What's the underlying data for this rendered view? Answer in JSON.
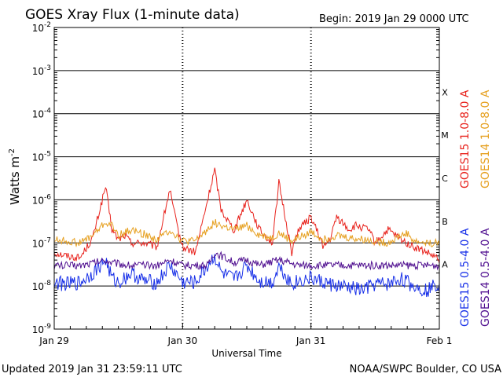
{
  "chart_data": {
    "type": "line",
    "title": "GOES Xray Flux (1-minute data)",
    "begin_label": "Begin:  2019 Jan 29 0000 UTC",
    "xlabel": "Universal Time",
    "ylabel": "Watts m",
    "ylabel_sup": "-2",
    "y_scale": "log",
    "ylim": [
      1e-09,
      0.01
    ],
    "x_ticks": [
      "Jan 29",
      "Jan 30",
      "Jan 31",
      "Feb 1"
    ],
    "y_ticks": [
      {
        "base": "10",
        "exp": "-9"
      },
      {
        "base": "10",
        "exp": "-8"
      },
      {
        "base": "10",
        "exp": "-7"
      },
      {
        "base": "10",
        "exp": "-6"
      },
      {
        "base": "10",
        "exp": "-5"
      },
      {
        "base": "10",
        "exp": "-4"
      },
      {
        "base": "10",
        "exp": "-3"
      },
      {
        "base": "10",
        "exp": "-2"
      }
    ],
    "flare_classes": [
      {
        "label": "A",
        "level": 1e-08
      },
      {
        "label": "B",
        "level": 1e-07
      },
      {
        "label": "C",
        "level": 1e-06
      },
      {
        "label": "M",
        "level": 1e-05
      },
      {
        "label": "X",
        "level": 0.0001
      }
    ],
    "x_units": "days since Jan 29 0000 UTC",
    "series": [
      {
        "name": "GOES15 1.0-8.0 A",
        "color": "#e8221c",
        "x": [
          0,
          0.1,
          0.2,
          0.3,
          0.4,
          0.45,
          0.5,
          0.55,
          0.6,
          0.7,
          0.8,
          0.9,
          0.95,
          1.0,
          1.1,
          1.25,
          1.3,
          1.4,
          1.5,
          1.6,
          1.7,
          1.75,
          1.85,
          1.9,
          2.0,
          2.1,
          2.15,
          2.2,
          2.3,
          2.35,
          2.45,
          2.5,
          2.6,
          2.7,
          2.8,
          2.9,
          3.0
        ],
        "y": [
          6e-08,
          5e-08,
          4.5e-08,
          1.3e-07,
          2e-06,
          2e-07,
          1.2e-07,
          1.5e-07,
          1e-07,
          1e-07,
          8e-08,
          1.7e-06,
          3e-07,
          8e-08,
          6e-08,
          5e-06,
          6e-07,
          2e-07,
          1e-06,
          2e-07,
          1e-07,
          2.5e-06,
          6e-08,
          2e-07,
          4e-07,
          8e-08,
          1.2e-07,
          4e-07,
          2e-07,
          2.5e-07,
          2e-07,
          1e-07,
          2e-07,
          1.2e-07,
          8e-08,
          6e-08,
          4e-08
        ]
      },
      {
        "name": "GOES14 1.0-8.0 A",
        "color": "#e6a020",
        "x": [
          0,
          0.1,
          0.2,
          0.3,
          0.4,
          0.45,
          0.5,
          0.6,
          0.7,
          0.8,
          0.9,
          1.0,
          1.1,
          1.25,
          1.3,
          1.4,
          1.5,
          1.6,
          1.7,
          1.75,
          1.85,
          1.9,
          2.0,
          2.1,
          2.2,
          2.3,
          2.4,
          2.5,
          2.6,
          2.7,
          2.75,
          2.8,
          2.9,
          3.0
        ],
        "y": [
          1.2e-07,
          1.1e-07,
          1e-07,
          1.5e-07,
          3e-07,
          2.5e-07,
          1.5e-07,
          2e-07,
          1.6e-07,
          1.2e-07,
          2e-07,
          1.1e-07,
          1.1e-07,
          3e-07,
          2.5e-07,
          2e-07,
          2.5e-07,
          1.5e-07,
          1.3e-07,
          1.7e-07,
          1.1e-07,
          1.3e-07,
          1.8e-07,
          1.2e-07,
          1.5e-07,
          1.3e-07,
          1.2e-07,
          1.1e-07,
          1e-07,
          1.5e-07,
          1.7e-07,
          1.1e-07,
          1e-07,
          1e-07
        ]
      },
      {
        "name": "GOES15 0.5-4.0 A",
        "color": "#1830e8",
        "x": [
          0,
          0.1,
          0.2,
          0.3,
          0.4,
          0.45,
          0.5,
          0.6,
          0.7,
          0.8,
          0.9,
          1.0,
          1.1,
          1.25,
          1.3,
          1.4,
          1.5,
          1.6,
          1.7,
          1.75,
          1.85,
          1.9,
          2.0,
          2.1,
          2.2,
          2.3,
          2.4,
          2.5,
          2.6,
          2.7,
          2.8,
          2.9,
          3.0
        ],
        "y": [
          1.2e-08,
          1.1e-08,
          1.2e-08,
          2e-08,
          4e-08,
          1.5e-08,
          1.2e-08,
          2e-08,
          1.3e-08,
          1.2e-08,
          3e-08,
          1.2e-08,
          1.2e-08,
          5e-08,
          2e-08,
          1.4e-08,
          3e-08,
          1.3e-08,
          1.2e-08,
          3e-08,
          1.1e-08,
          1.3e-08,
          1.5e-08,
          1.2e-08,
          1e-08,
          9e-09,
          8e-09,
          1.1e-08,
          1.1e-08,
          1.5e-08,
          1e-08,
          8e-09,
          1.2e-08
        ]
      },
      {
        "name": "GOES14 0.5-4.0 A",
        "color": "#501090",
        "x": [
          0,
          0.2,
          0.4,
          0.45,
          0.6,
          0.8,
          0.9,
          1.0,
          1.2,
          1.25,
          1.4,
          1.5,
          1.6,
          1.75,
          1.9,
          2.1,
          2.3,
          2.5,
          2.7,
          2.9,
          3.0
        ],
        "y": [
          3e-08,
          3e-08,
          4e-08,
          3.5e-08,
          3e-08,
          3e-08,
          4e-08,
          3e-08,
          3e-08,
          6e-08,
          3.5e-08,
          4e-08,
          3e-08,
          4e-08,
          3e-08,
          3e-08,
          3e-08,
          3e-08,
          3e-08,
          3e-08,
          3e-08
        ]
      }
    ]
  },
  "footer": {
    "updated": "Updated 2019 Jan 31 23:59:11 UTC",
    "credit": "NOAA/SWPC Boulder, CO USA"
  }
}
